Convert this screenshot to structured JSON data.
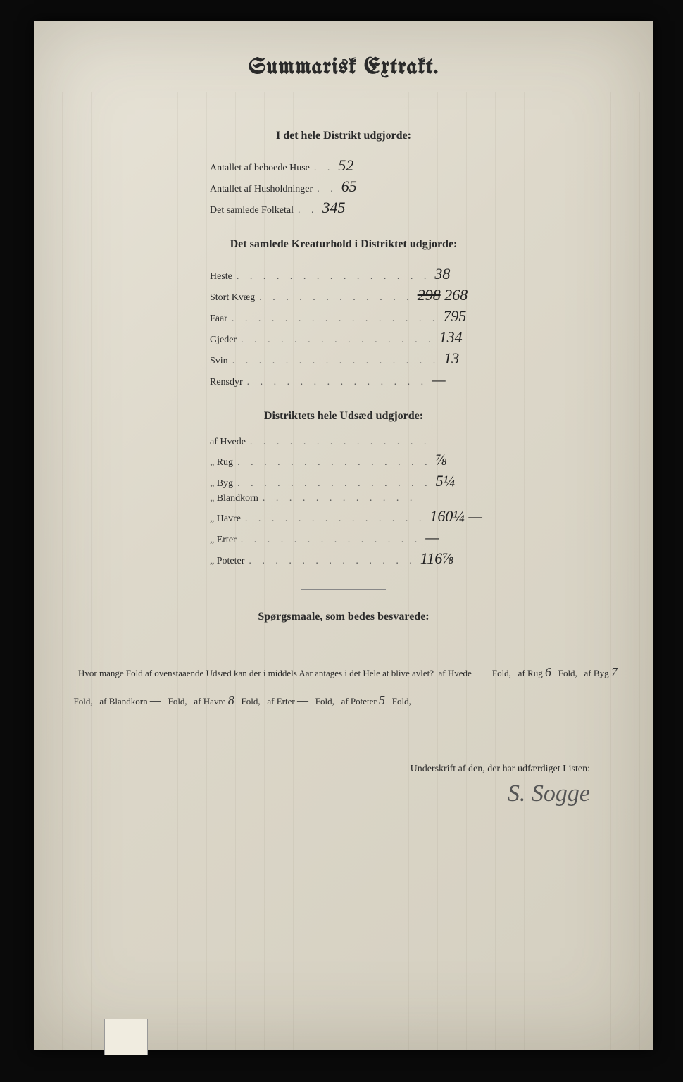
{
  "title": "Summarisk Extrakt.",
  "section1": {
    "heading": "I det hele Distrikt udgjorde:",
    "rows": [
      {
        "label": "Antallet af beboede Huse",
        "value": "52"
      },
      {
        "label": "Antallet af Husholdninger",
        "value": "65"
      },
      {
        "label": "Det samlede Folketal",
        "value": "345"
      }
    ]
  },
  "section2": {
    "heading": "Det samlede Kreaturhold i Distriktet udgjorde:",
    "rows": [
      {
        "label": "Heste",
        "value": "38"
      },
      {
        "label": "Stort Kvæg",
        "value": "268",
        "struck": "298"
      },
      {
        "label": "Faar",
        "value": "795"
      },
      {
        "label": "Gjeder",
        "value": "134"
      },
      {
        "label": "Svin",
        "value": "13"
      },
      {
        "label": "Rensdyr",
        "value": "—"
      }
    ]
  },
  "section3": {
    "heading": "Distriktets hele Udsæd udgjorde:",
    "rows": [
      {
        "label": "af Hvede",
        "value": ""
      },
      {
        "label": "„ Rug",
        "value": "⅞"
      },
      {
        "label": "„ Byg",
        "value": "5¼"
      },
      {
        "label": "„ Blandkorn",
        "value": ""
      },
      {
        "label": "„ Havre",
        "value": "160¼ —"
      },
      {
        "label": "„ Erter",
        "value": "—"
      },
      {
        "label": "„ Poteter",
        "value": "116⅞"
      }
    ]
  },
  "questions": {
    "heading": "Spørgsmaale, som bedes besvarede:",
    "intro": "Hvor mange Fold af ovenstaaende Udsæd kan der i middels Aar antages i det Hele at blive avlet?",
    "items": [
      {
        "crop": "af Hvede",
        "val": "—"
      },
      {
        "crop": "af Rug",
        "val": "6"
      },
      {
        "crop": "af Byg",
        "val": "7"
      },
      {
        "crop": "af Blandkorn",
        "val": "—"
      },
      {
        "crop": "af Havre",
        "val": "8"
      },
      {
        "crop": "af Erter",
        "val": "—"
      },
      {
        "crop": "af Poteter",
        "val": "5"
      }
    ],
    "unit": "Fold,"
  },
  "signature": {
    "label": "Underskrift af den, der har udfærdiget Listen:",
    "name": "S. Sogge"
  }
}
